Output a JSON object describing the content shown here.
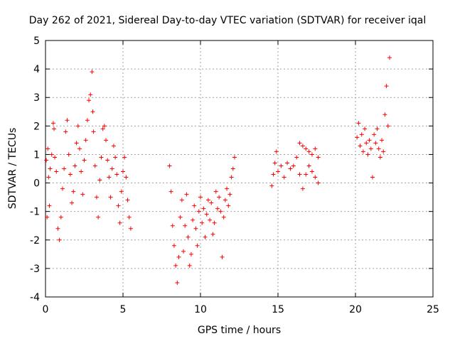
{
  "chart_data": {
    "type": "scatter",
    "title": "Day 262 of 2021, Sidereal Day-to-day VTEC variation (SDTVAR) for receiver iqal",
    "xlabel": "GPS time / hours",
    "ylabel": "SDTVAR / TECUs",
    "xlim": [
      0,
      25
    ],
    "ylim": [
      -4,
      5
    ],
    "xticks": [
      0,
      5,
      10,
      15,
      20,
      25
    ],
    "yticks": [
      -4,
      -3,
      -2,
      -1,
      0,
      1,
      2,
      3,
      4,
      5
    ],
    "grid": true,
    "marker": "+",
    "color": "#ff0000",
    "series": [
      {
        "name": "SDTVAR",
        "x": [
          0.05,
          0.1,
          0.15,
          0.2,
          0.25,
          0.3,
          0.4,
          0.5,
          0.55,
          0.6,
          0.7,
          0.8,
          0.9,
          1.0,
          1.1,
          1.2,
          1.3,
          1.4,
          1.5,
          1.6,
          1.7,
          1.8,
          1.9,
          2.0,
          2.1,
          2.2,
          2.3,
          2.4,
          2.5,
          2.6,
          2.7,
          2.8,
          2.9,
          3.0,
          3.05,
          3.1,
          3.2,
          3.3,
          3.4,
          3.5,
          3.6,
          3.7,
          3.8,
          3.9,
          4.0,
          4.1,
          4.2,
          4.3,
          4.4,
          4.5,
          4.6,
          4.7,
          4.8,
          4.9,
          5.0,
          5.1,
          5.2,
          5.3,
          5.4,
          5.5,
          8.0,
          8.1,
          8.2,
          8.3,
          8.4,
          8.5,
          8.6,
          8.7,
          8.8,
          8.9,
          9.0,
          9.1,
          9.2,
          9.3,
          9.4,
          9.5,
          9.6,
          9.7,
          9.8,
          9.9,
          10.0,
          10.1,
          10.2,
          10.3,
          10.4,
          10.5,
          10.6,
          10.7,
          10.8,
          10.9,
          11.0,
          11.1,
          11.2,
          11.3,
          11.4,
          11.5,
          11.6,
          11.7,
          11.8,
          11.9,
          12.0,
          12.1,
          12.2,
          14.6,
          14.7,
          14.8,
          14.9,
          15.0,
          15.2,
          15.4,
          15.6,
          15.8,
          16.0,
          16.2,
          16.4,
          16.6,
          16.8,
          17.0,
          17.2,
          17.4,
          17.6,
          16.4,
          16.6,
          16.8,
          17.0,
          17.2,
          17.4,
          17.6,
          20.1,
          20.2,
          20.3,
          20.4,
          20.5,
          20.6,
          20.7,
          20.8,
          20.9,
          21.0,
          21.1,
          21.2,
          21.3,
          21.4,
          21.5,
          21.6,
          21.7,
          21.8,
          21.9,
          22.0,
          22.1,
          22.2
        ],
        "y": [
          0.8,
          -1.2,
          1.2,
          0.2,
          -0.8,
          0.5,
          1.0,
          2.1,
          1.9,
          0.9,
          0.4,
          -1.6,
          -2.0,
          -1.2,
          -0.2,
          0.5,
          1.8,
          2.2,
          1.0,
          0.3,
          -0.7,
          -0.3,
          0.6,
          1.4,
          2.0,
          1.2,
          0.4,
          -0.4,
          0.8,
          1.5,
          2.2,
          2.9,
          3.1,
          3.9,
          2.5,
          1.8,
          0.6,
          -0.5,
          -1.2,
          0.1,
          0.9,
          1.9,
          2.0,
          1.5,
          0.8,
          0.2,
          -0.5,
          0.5,
          1.3,
          0.9,
          0.3,
          -0.8,
          -1.4,
          -0.3,
          0.4,
          0.9,
          0.2,
          -0.6,
          -1.2,
          -1.6,
          0.6,
          -0.3,
          -1.5,
          -2.2,
          -2.9,
          -3.5,
          -2.6,
          -1.2,
          -0.6,
          -2.4,
          -1.5,
          -0.4,
          -1.9,
          -2.9,
          -2.5,
          -1.3,
          -0.8,
          -1.6,
          -2.2,
          -1.0,
          -0.5,
          -1.4,
          -0.9,
          -1.9,
          -1.1,
          -0.6,
          -1.3,
          -0.7,
          -1.8,
          -1.4,
          -0.3,
          -0.9,
          -0.5,
          -1.0,
          -2.6,
          -1.2,
          -0.6,
          -0.2,
          -0.8,
          -0.4,
          0.2,
          0.5,
          0.9,
          -0.1,
          0.3,
          0.7,
          1.1,
          0.4,
          0.6,
          0.2,
          0.7,
          0.5,
          0.6,
          0.9,
          1.4,
          1.3,
          1.2,
          1.1,
          1.0,
          1.2,
          0.9,
          0.3,
          -0.2,
          0.3,
          0.6,
          0.4,
          0.2,
          0.0,
          1.6,
          2.1,
          1.3,
          1.7,
          1.1,
          1.9,
          1.4,
          1.0,
          1.5,
          1.2,
          0.2,
          1.7,
          1.4,
          1.9,
          1.2,
          0.9,
          1.5,
          1.1,
          2.4,
          3.4,
          2.0,
          4.4
        ]
      }
    ]
  }
}
